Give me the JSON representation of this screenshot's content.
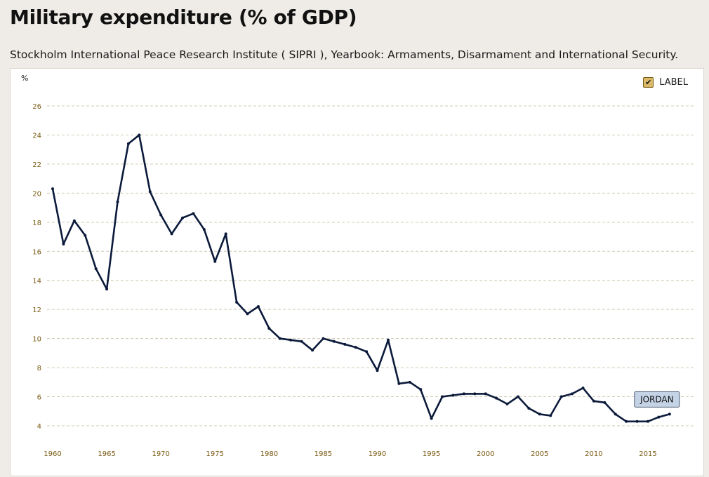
{
  "page": {
    "title": "Military expenditure (% of GDP)",
    "source": "Stockholm International Peace Research Institute ( SIPRI ), Yearbook: Armaments, Disarmament and International Security."
  },
  "legend": {
    "label": "LABEL",
    "checked": true
  },
  "chart_data": {
    "type": "line",
    "ylabel": "%",
    "xlabel": "",
    "xlim": [
      1960,
      2017
    ],
    "ylim": [
      3,
      26
    ],
    "yticks": [
      4,
      6,
      8,
      10,
      12,
      14,
      16,
      18,
      20,
      22,
      24,
      26
    ],
    "xticks": [
      1960,
      1965,
      1970,
      1975,
      1980,
      1985,
      1990,
      1995,
      2000,
      2005,
      2010,
      2015
    ],
    "grid": true,
    "series_label": "JORDAN",
    "series": [
      {
        "name": "JORDAN",
        "color": "#0b1a3a",
        "x": [
          1960,
          1961,
          1962,
          1963,
          1964,
          1965,
          1966,
          1967,
          1968,
          1969,
          1970,
          1971,
          1972,
          1973,
          1974,
          1975,
          1976,
          1977,
          1978,
          1979,
          1980,
          1981,
          1982,
          1983,
          1984,
          1985,
          1986,
          1987,
          1988,
          1989,
          1990,
          1991,
          1992,
          1993,
          1994,
          1995,
          1996,
          1997,
          1998,
          1999,
          2000,
          2001,
          2002,
          2003,
          2004,
          2005,
          2006,
          2007,
          2008,
          2009,
          2010,
          2011,
          2012,
          2013,
          2014,
          2015,
          2016,
          2017
        ],
        "values": [
          20.3,
          16.5,
          18.1,
          17.1,
          14.8,
          13.4,
          19.4,
          23.4,
          24.0,
          20.1,
          18.5,
          17.2,
          18.3,
          18.6,
          17.5,
          15.3,
          17.2,
          12.5,
          11.7,
          12.2,
          10.7,
          10.0,
          9.9,
          9.8,
          9.2,
          10.0,
          9.8,
          9.6,
          9.4,
          9.1,
          7.8,
          9.9,
          6.9,
          7.0,
          6.5,
          4.5,
          6.0,
          6.1,
          6.2,
          6.2,
          6.2,
          5.9,
          5.5,
          6.0,
          5.2,
          4.8,
          4.7,
          6.0,
          6.2,
          6.6,
          5.7,
          5.6,
          4.8,
          4.3,
          4.3,
          4.3,
          4.6,
          4.8
        ]
      }
    ]
  },
  "colors": {
    "background": "#efebe6",
    "panel": "#ffffff",
    "grid": "#cfcab3",
    "tick_text": "#7a5a12",
    "line": "#0b1a3a",
    "label_fill": "#c4d3e5",
    "label_border": "#4a5a72"
  }
}
